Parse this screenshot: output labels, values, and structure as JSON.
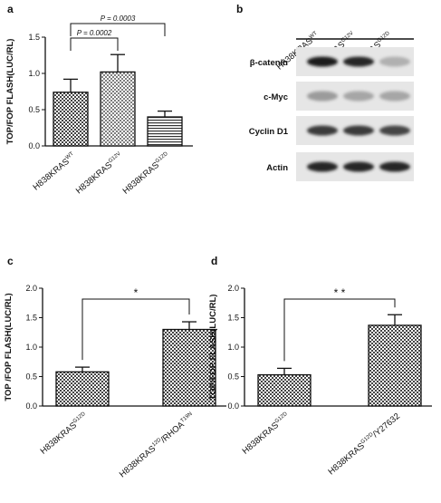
{
  "panels": {
    "a": {
      "letter": "a",
      "ylabel": "TOP/FOP FLASH(LUC/RL)",
      "sig": [
        {
          "from": 0,
          "to": 1,
          "label": "P = 0.0002"
        },
        {
          "from": 0,
          "to": 2,
          "label": "P = 0.0003"
        }
      ]
    },
    "b": {
      "letter": "b",
      "lanes": [
        {
          "base": "H838KRAS",
          "sup": "WT"
        },
        {
          "base": "H838KRAS",
          "sup": "G12V"
        },
        {
          "base": "H838KRAS",
          "sup": "G12D"
        }
      ],
      "bands": [
        {
          "label": "β-catenin",
          "intensity": [
            0.95,
            0.9,
            0.25
          ]
        },
        {
          "label": "c-Myc",
          "intensity": [
            0.35,
            0.3,
            0.3
          ]
        },
        {
          "label": "Cyclin D1",
          "intensity": [
            0.8,
            0.8,
            0.75
          ]
        },
        {
          "label": "Actin",
          "intensity": [
            0.9,
            0.9,
            0.9
          ]
        }
      ]
    },
    "c": {
      "letter": "c",
      "ylabel": "TOP /FOP FLASH(LUC/RL)",
      "sig": [
        {
          "from": 0,
          "to": 1,
          "label": "*"
        }
      ]
    },
    "d": {
      "letter": "d",
      "ylabel": "TOP/FOP FLASH(LUC/RL)",
      "sig": [
        {
          "from": 0,
          "to": 1,
          "label": "* *"
        }
      ]
    }
  },
  "chart_data": [
    {
      "panel": "a",
      "type": "bar",
      "categories": [
        {
          "base": "H838KRAS",
          "sup": "WT",
          "mid": ""
        },
        {
          "base": "H838KRAS",
          "sup": "G12V",
          "mid": ""
        },
        {
          "base": "H838KRAS",
          "sup": "G12D",
          "mid": ""
        }
      ],
      "values": [
        0.74,
        1.02,
        0.4
      ],
      "errors": [
        0.18,
        0.24,
        0.08
      ],
      "patterns": [
        "checker",
        "dots",
        "hlines"
      ],
      "ylim": [
        0,
        1.5
      ],
      "yticks": [
        "0.0",
        "0.5",
        "1.0",
        "1.5"
      ]
    },
    {
      "panel": "c",
      "type": "bar",
      "categories": [
        {
          "base": "H838KRAS",
          "sup": "G12D",
          "mid": ""
        },
        {
          "base": "H838KRAS",
          "sup": "12D",
          "mid": "/RHOA",
          "sup2": "T19N"
        }
      ],
      "values": [
        0.58,
        1.3
      ],
      "errors": [
        0.08,
        0.13
      ],
      "patterns": [
        "checker",
        "checker"
      ],
      "ylim": [
        0,
        2.0
      ],
      "yticks": [
        "0.0",
        "0.5",
        "1.0",
        "1.5",
        "2.0"
      ]
    },
    {
      "panel": "d",
      "type": "bar",
      "categories": [
        {
          "base": "H838KRAS",
          "sup": "G12D",
          "mid": ""
        },
        {
          "base": "H838KRAS",
          "sup": "G12D",
          "mid": "/Y27632"
        }
      ],
      "values": [
        0.53,
        1.37
      ],
      "errors": [
        0.11,
        0.18
      ],
      "patterns": [
        "checker",
        "checker"
      ],
      "ylim": [
        0,
        2.0
      ],
      "yticks": [
        "0.0",
        "0.5",
        "1.0",
        "1.5",
        "2.0"
      ]
    }
  ]
}
